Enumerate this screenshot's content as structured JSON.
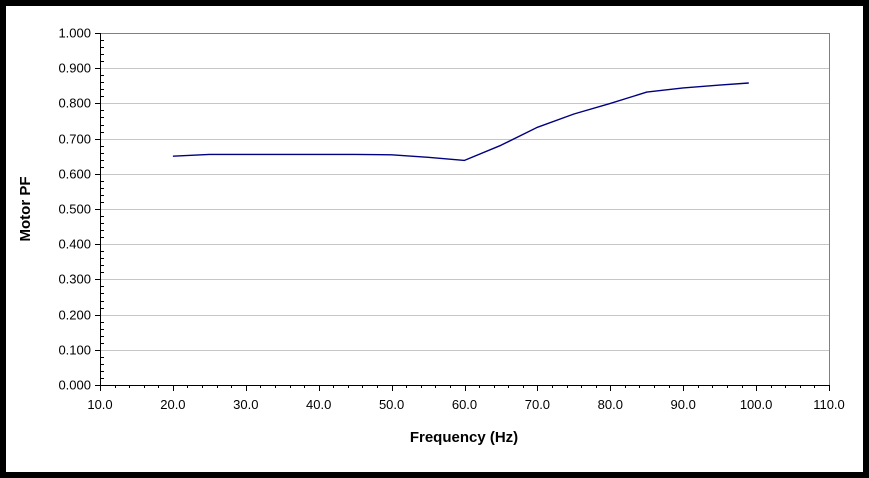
{
  "chart_data": {
    "type": "line",
    "title": "",
    "xlabel": "Frequency (Hz)",
    "ylabel": "Motor PF",
    "x": [
      20,
      25,
      30,
      35,
      40,
      45,
      50,
      55,
      60,
      65,
      70,
      75,
      80,
      85,
      90,
      95,
      99
    ],
    "y": [
      0.65,
      0.655,
      0.655,
      0.655,
      0.655,
      0.655,
      0.654,
      0.647,
      0.638,
      0.681,
      0.732,
      0.77,
      0.8,
      0.832,
      0.844,
      0.852,
      0.858
    ],
    "xlim": [
      10,
      110
    ],
    "ylim": [
      0.0,
      1.0
    ],
    "x_major_unit": 10,
    "x_minor_unit": 2,
    "y_major_unit": 0.1,
    "y_minor_unit": 0.02,
    "x_tick_labels": [
      "10.0",
      "20.0",
      "30.0",
      "40.0",
      "50.0",
      "60.0",
      "70.0",
      "80.0",
      "90.0",
      "100.0",
      "110.0"
    ],
    "y_tick_labels": [
      "0.000",
      "0.100",
      "0.200",
      "0.300",
      "0.400",
      "0.500",
      "0.600",
      "0.700",
      "0.800",
      "0.900",
      "1.000"
    ],
    "grid": "horizontal-major-only",
    "legend": "none",
    "colors": {
      "line": "#000080",
      "gridline": "#c6c6c6",
      "plot_border": "#808080",
      "axis": "#000000",
      "text": "#000000",
      "background": "#ffffff",
      "frame": "#000000"
    }
  }
}
